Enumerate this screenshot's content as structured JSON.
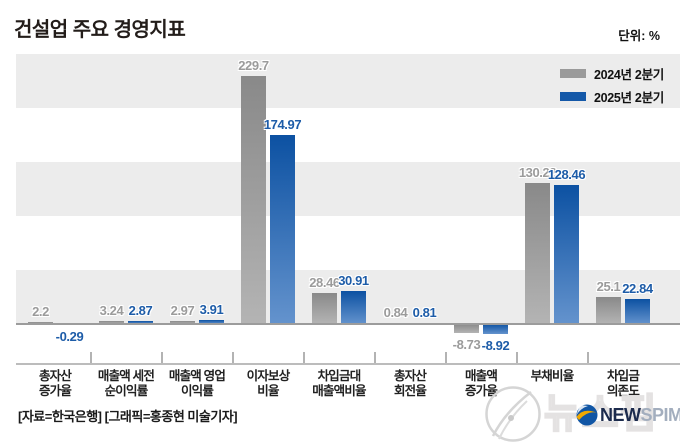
{
  "title": "건설업 주요 경영지표",
  "unit": "단위: %",
  "legend": {
    "items": [
      {
        "label": "2024년 2분기",
        "color": "#9a9a9a"
      },
      {
        "label": "2025년 2분기",
        "color": "#1458a8"
      }
    ]
  },
  "chart_data": {
    "type": "bar",
    "title": "건설업 주요 경영지표",
    "unit": "%",
    "ylim": [
      -15,
      250
    ],
    "band_step": 50,
    "grid": "horizontal-bands",
    "legend_position": "top-right",
    "categories": [
      "총자산\n증가율",
      "매출액 세전\n순이익률",
      "매출액 영업\n이익률",
      "이자보상\n비율",
      "차입금대\n매출액비율",
      "총자산\n회전율",
      "매출액\n증가율",
      "부채비율",
      "차입금\n의존도"
    ],
    "series": [
      {
        "name": "2024년 2분기",
        "color_top": "#898989",
        "color_bottom": "#b4b4b4",
        "values": [
          2.2,
          3.24,
          2.97,
          229.7,
          28.46,
          0.84,
          -8.73,
          130.22,
          25.1
        ],
        "labels": [
          "2.2",
          "3.24",
          "2.97",
          "229.7",
          "28.46",
          "0.84",
          "-8.73",
          "130.22",
          "25.1"
        ]
      },
      {
        "name": "2025년 2분기",
        "color_top": "#0c51a2",
        "color_bottom": "#6493cd",
        "values": [
          -0.29,
          2.87,
          3.91,
          174.97,
          30.91,
          0.81,
          -8.92,
          128.46,
          22.84
        ],
        "labels": [
          "-0.29",
          "2.87",
          "3.91",
          "174.97",
          "30.91",
          "0.81",
          "-8.92",
          "128.46",
          "22.84"
        ]
      }
    ]
  },
  "source": "[자료=한국은행] [그래픽=홍종현 미술기자]",
  "watermark": {
    "hangul": "뉴스핌",
    "latin_bold": "NEW",
    "latin_light": "SPIM"
  }
}
